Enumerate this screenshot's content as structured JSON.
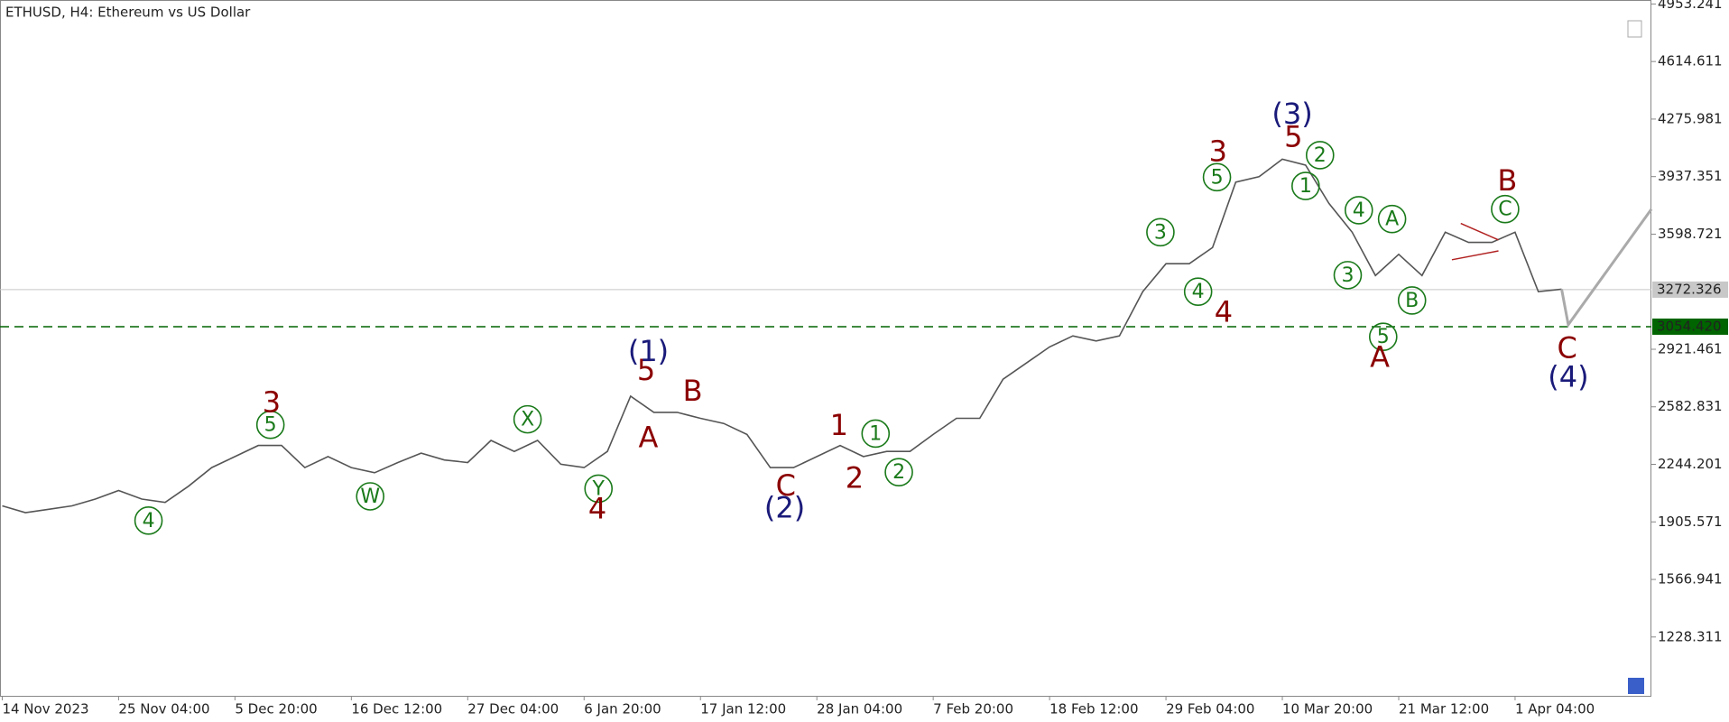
{
  "chart_data": {
    "type": "line",
    "title": "ETHUSD, H4:  Ethereum vs US Dollar",
    "categories": [
      "14 Nov 2023",
      null,
      null,
      null,
      null,
      "25 Nov 04:00",
      null,
      null,
      null,
      null,
      "5 Dec 20:00",
      null,
      null,
      null,
      null,
      "16 Dec 12:00",
      null,
      null,
      null,
      null,
      "27 Dec 04:00",
      null,
      null,
      null,
      null,
      "6 Jan 20:00",
      null,
      null,
      null,
      null,
      "17 Jan 12:00",
      null,
      null,
      null,
      null,
      "28 Jan 04:00",
      null,
      null,
      null,
      null,
      "7 Feb 20:00",
      null,
      null,
      null,
      null,
      "18 Feb 12:00",
      null,
      null,
      null,
      null,
      "29 Feb 04:00",
      null,
      null,
      null,
      null,
      "10 Mar 20:00",
      null,
      null,
      null,
      null,
      "21 Mar 12:00",
      null,
      null,
      null,
      null,
      "1 Apr 04:00",
      null,
      null
    ],
    "values": [
      2000,
      1960,
      1980,
      2000,
      2040,
      2090,
      2040,
      2020,
      2115,
      2225,
      2290,
      2355,
      2355,
      2225,
      2290,
      2225,
      2195,
      2255,
      2310,
      2270,
      2255,
      2385,
      2320,
      2385,
      2245,
      2225,
      2320,
      2645,
      2550,
      2550,
      2515,
      2485,
      2420,
      2225,
      2225,
      2290,
      2355,
      2290,
      2320,
      2320,
      2420,
      2515,
      2515,
      2745,
      2840,
      2935,
      3000,
      2970,
      3000,
      3260,
      3425,
      3425,
      3520,
      3905,
      3937,
      4040,
      4005,
      3780,
      3610,
      3355,
      3480,
      3355,
      3610,
      3550,
      3550,
      3610,
      3260,
      3275
    ],
    "color": "#555555",
    "ylim": [
      898,
      4966
    ],
    "yticks": [
      4953.241,
      4614.611,
      4275.981,
      3937.351,
      3598.721,
      2921.461,
      2582.831,
      2244.201,
      1905.571,
      1566.941,
      1228.311
    ],
    "price_lines": [
      {
        "value": 3272.326,
        "color": "#c8c8c8"
      },
      {
        "value": 3054.42,
        "label": "3054.420",
        "color": "#006400"
      }
    ],
    "annotation_groups": [
      {
        "color": "#1a7a1a",
        "circled": true,
        "labels": [
          "4",
          "5",
          "W",
          "X",
          "Y",
          "1",
          "2",
          "3",
          "4",
          "5",
          "1",
          "2",
          "3",
          "4",
          "5",
          "A",
          "B",
          "C"
        ]
      },
      {
        "color": "#8b0000",
        "circled": false,
        "labels": [
          "3",
          "4",
          "5",
          "A",
          "B",
          "C",
          "1",
          "2",
          "3",
          "4",
          "5",
          "A",
          "B",
          "C"
        ]
      },
      {
        "color": "#1a1a7a",
        "circled": false,
        "labels": [
          "(1)",
          "(2)",
          "(3)",
          "(4)"
        ]
      }
    ]
  }
}
